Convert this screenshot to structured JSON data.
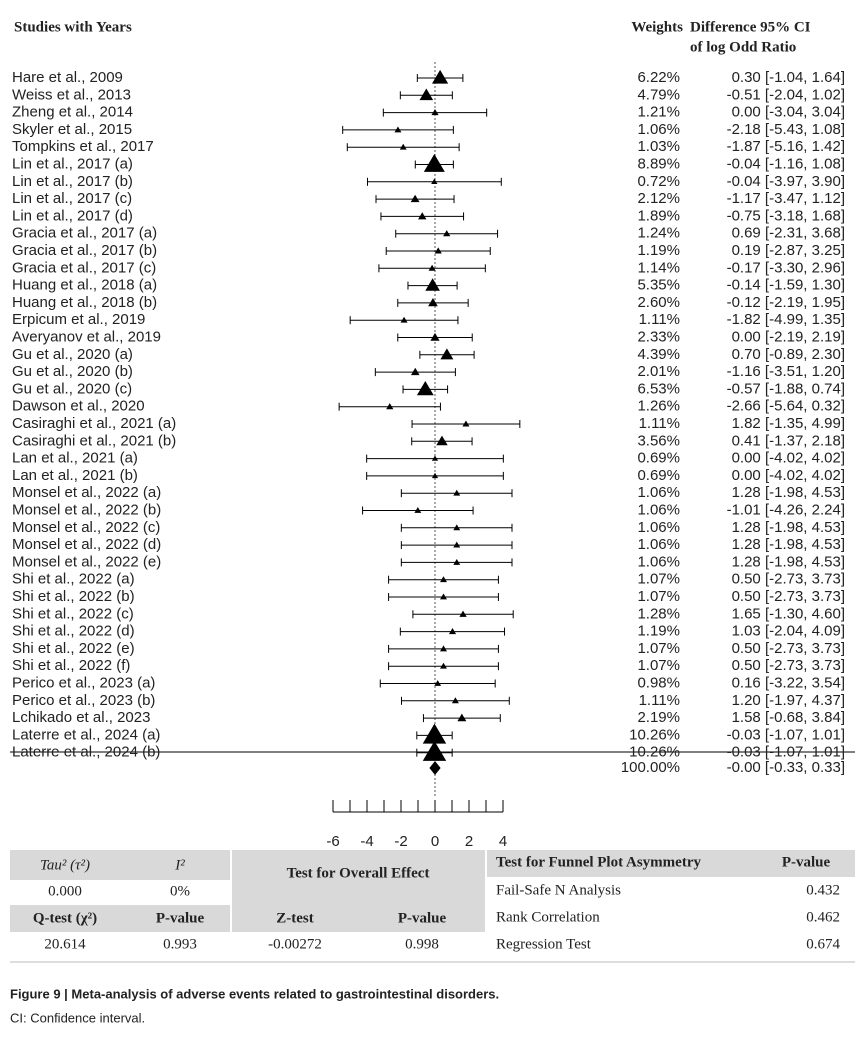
{
  "chart_data": {
    "type": "forest",
    "study_header": "Studies with Years",
    "weight_header": "Weights",
    "difference_header": [
      "Difference 95% CI",
      "of log Odd Ratio"
    ],
    "studies": [
      "Hare et al., 2009",
      "Weiss et al., 2013",
      "Zheng et al., 2014",
      "Skyler et al., 2015",
      "Tompkins et al., 2017",
      "Lin et al., 2017 (a)",
      "Lin et al., 2017 (b)",
      "Lin et al., 2017 (c)",
      "Lin et al., 2017 (d)",
      "Gracia et al., 2017 (a)",
      "Gracia et al., 2017 (b)",
      "Gracia et al., 2017 (c)",
      "Huang et al., 2018 (a)",
      "Huang et al., 2018 (b)",
      "Erpicum et al., 2019",
      "Averyanov et al., 2019",
      "Gu et al., 2020 (a)",
      "Gu et al., 2020 (b)",
      "Gu et al., 2020 (c)",
      "Dawson et al., 2020",
      "Casiraghi et al., 2021 (a)",
      "Casiraghi et al., 2021 (b)",
      "Lan et al., 2021 (a)",
      "Lan et al., 2021 (b)",
      "Monsel et al., 2022 (a)",
      "Monsel et al., 2022 (b)",
      "Monsel et al., 2022 (c)",
      "Monsel et al., 2022 (d)",
      "Monsel et al., 2022 (e)",
      "Shi et al., 2022 (a)",
      "Shi et al., 2022 (b)",
      "Shi et al., 2022 (c)",
      "Shi et al., 2022 (d)",
      "Shi et al., 2022 (e)",
      "Shi et al., 2022 (f)",
      "Perico et al., 2023 (a)",
      "Perico et al., 2023 (b)",
      "Lchikado et al., 2023",
      "Laterre et al., 2024 (a)",
      "Laterre et al., 2024 (b)"
    ],
    "weights": [
      6.22,
      4.79,
      1.21,
      1.06,
      1.03,
      8.89,
      0.72,
      2.12,
      1.89,
      1.24,
      1.19,
      1.14,
      5.35,
      2.6,
      1.11,
      2.33,
      4.39,
      2.01,
      6.53,
      1.26,
      1.11,
      3.56,
      0.69,
      0.69,
      1.06,
      1.06,
      1.06,
      1.06,
      1.06,
      1.07,
      1.07,
      1.28,
      1.19,
      1.07,
      1.07,
      0.98,
      1.11,
      2.19,
      10.26,
      10.26
    ],
    "weight_labels": [
      "6.22%",
      "4.79%",
      "1.21%",
      "1.06%",
      "1.03%",
      "8.89%",
      "0.72%",
      "2.12%",
      "1.89%",
      "1.24%",
      "1.19%",
      "1.14%",
      "5.35%",
      "2.60%",
      "1.11%",
      "2.33%",
      "4.39%",
      "2.01%",
      "6.53%",
      "1.26%",
      "1.11%",
      "3.56%",
      "0.69%",
      "0.69%",
      "1.06%",
      "1.06%",
      "1.06%",
      "1.06%",
      "1.06%",
      "1.07%",
      "1.07%",
      "1.28%",
      "1.19%",
      "1.07%",
      "1.07%",
      "0.98%",
      "1.11%",
      "2.19%",
      "10.26%",
      "10.26%"
    ],
    "values": [
      0.3,
      -0.51,
      0.0,
      -2.18,
      -1.87,
      -0.04,
      -0.04,
      -1.17,
      -0.75,
      0.69,
      0.19,
      -0.17,
      -0.14,
      -0.12,
      -1.82,
      0.0,
      0.7,
      -1.16,
      -0.57,
      -2.66,
      1.82,
      0.41,
      0.0,
      0.0,
      1.28,
      -1.01,
      1.28,
      1.28,
      1.28,
      0.5,
      0.5,
      1.65,
      1.03,
      0.5,
      0.5,
      0.16,
      1.2,
      1.58,
      -0.03,
      -0.03
    ],
    "lower": [
      -1.04,
      -2.04,
      -3.04,
      -5.43,
      -5.16,
      -1.16,
      -3.97,
      -3.47,
      -3.18,
      -2.31,
      -2.87,
      -3.3,
      -1.59,
      -2.19,
      -4.99,
      -2.19,
      -0.89,
      -3.51,
      -1.88,
      -5.64,
      -1.35,
      -1.37,
      -4.02,
      -4.02,
      -1.98,
      -4.26,
      -1.98,
      -1.98,
      -1.98,
      -2.73,
      -2.73,
      -1.3,
      -2.04,
      -2.73,
      -2.73,
      -3.22,
      -1.97,
      -0.68,
      -1.07,
      -1.07
    ],
    "upper": [
      1.64,
      1.02,
      3.04,
      1.08,
      1.42,
      1.08,
      3.9,
      1.12,
      1.68,
      3.68,
      3.25,
      2.96,
      1.3,
      1.95,
      1.35,
      2.19,
      2.3,
      1.2,
      0.74,
      0.32,
      4.99,
      2.18,
      4.02,
      4.02,
      4.53,
      2.24,
      4.53,
      4.53,
      4.53,
      3.73,
      3.73,
      4.6,
      4.09,
      3.73,
      3.73,
      3.54,
      4.37,
      3.84,
      1.01,
      1.01
    ],
    "ci_labels": [
      "0.30 [-1.04, 1.64]",
      "-0.51 [-2.04, 1.02]",
      "0.00 [-3.04, 3.04]",
      "-2.18 [-5.43, 1.08]",
      "-1.87 [-5.16, 1.42]",
      "-0.04 [-1.16, 1.08]",
      "-0.04 [-3.97, 3.90]",
      "-1.17 [-3.47, 1.12]",
      "-0.75 [-3.18, 1.68]",
      "0.69 [-2.31, 3.68]",
      "0.19 [-2.87, 3.25]",
      "-0.17 [-3.30, 2.96]",
      "-0.14 [-1.59, 1.30]",
      "-0.12 [-2.19, 1.95]",
      "-1.82 [-4.99, 1.35]",
      "0.00 [-2.19, 2.19]",
      "0.70 [-0.89, 2.30]",
      "-1.16 [-3.51, 1.20]",
      "-0.57 [-1.88, 0.74]",
      "-2.66 [-5.64, 0.32]",
      "1.82 [-1.35, 4.99]",
      "0.41 [-1.37, 2.18]",
      "0.00 [-4.02, 4.02]",
      "0.00 [-4.02, 4.02]",
      "1.28 [-1.98, 4.53]",
      "-1.01 [-4.26, 2.24]",
      "1.28 [-1.98, 4.53]",
      "1.28 [-1.98, 4.53]",
      "1.28 [-1.98, 4.53]",
      "0.50 [-2.73, 3.73]",
      "0.50 [-2.73, 3.73]",
      "1.65 [-1.30, 4.60]",
      "1.03 [-2.04, 4.09]",
      "0.50 [-2.73, 3.73]",
      "0.50 [-2.73, 3.73]",
      "0.16 [-3.22, 3.54]",
      "1.20 [-1.97, 4.37]",
      "1.58 [-0.68, 3.84]",
      "-0.03 [-1.07, 1.01]",
      "-0.03 [-1.07, 1.01]"
    ],
    "summary": {
      "weight": 100,
      "weight_label": "100.00%",
      "value": 0,
      "lower": -0.33,
      "upper": 0.33,
      "label": "-0.00 [-0.33, 0.33]"
    },
    "xlim": [
      -6,
      4
    ],
    "xticks": [
      -6,
      -4,
      -2,
      0,
      2,
      4
    ],
    "minor_xticks": [
      -5,
      -3,
      -1,
      1,
      3
    ],
    "reference_line": 0,
    "color": "#000000"
  },
  "tables": {
    "heterogeneity": {
      "header": [
        "Tau² (τ²)",
        "I²"
      ],
      "row": [
        "0.000",
        "0%"
      ],
      "header2": [
        "Q-test (χ²)",
        "P-value"
      ],
      "row2": [
        "20.614",
        "0.993"
      ]
    },
    "overall": {
      "title": "Test for Overall Effect",
      "header": [
        "Z-test",
        "P-value"
      ],
      "row": [
        "-0.00272",
        "0.998"
      ]
    },
    "funnel": {
      "header": [
        "Test for Funnel Plot Asymmetry",
        "P-value"
      ],
      "rows": [
        [
          "Fail-Safe N Analysis",
          "0.432"
        ],
        [
          "Rank Correlation",
          "0.462"
        ],
        [
          "Regression Test",
          "0.674"
        ]
      ]
    }
  },
  "caption": {
    "title": "Figure 9 | Meta-analysis of adverse events related to gastrointestinal disorders.",
    "note": "CI: Confidence interval."
  }
}
